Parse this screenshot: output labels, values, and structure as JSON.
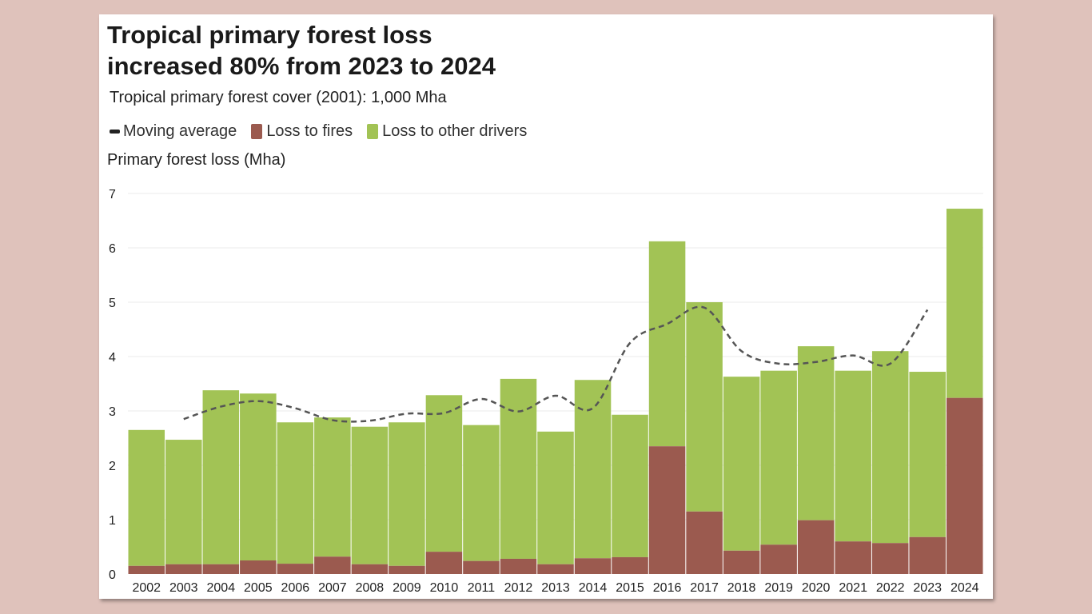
{
  "chart_data": {
    "type": "bar",
    "stacked": true,
    "title": "Tropical primary forest loss increased 80% from 2023 to 2024",
    "title_lines": [
      "Tropical primary forest loss",
      "increased 80% from 2023 to 2024"
    ],
    "subtitle": "Tropical primary forest cover (2001): 1,000 Mha",
    "ylabel": "Primary forest loss (Mha)",
    "xlabel": "",
    "ylim": [
      0,
      7
    ],
    "yticks": [
      "0",
      "1",
      "2",
      "3",
      "4",
      "5",
      "6",
      "7"
    ],
    "grid": true,
    "legend_placement": "top-left",
    "legend": [
      {
        "name": "Moving average",
        "marker": "dash",
        "color": "#222222"
      },
      {
        "name": "Loss to fires",
        "color": "#9b5a4f"
      },
      {
        "name": "Loss to other drivers",
        "color": "#a2c355"
      }
    ],
    "categories": [
      "2002",
      "2003",
      "2004",
      "2005",
      "2006",
      "2007",
      "2008",
      "2009",
      "2010",
      "2011",
      "2012",
      "2013",
      "2014",
      "2015",
      "2016",
      "2017",
      "2018",
      "2019",
      "2020",
      "2021",
      "2022",
      "2023",
      "2024"
    ],
    "series": [
      {
        "name": "Loss to fires",
        "color": "#9b5a4f",
        "values": [
          0.15,
          0.18,
          0.18,
          0.25,
          0.19,
          0.32,
          0.18,
          0.15,
          0.41,
          0.24,
          0.28,
          0.18,
          0.29,
          0.31,
          2.35,
          1.15,
          0.43,
          0.54,
          0.99,
          0.6,
          0.57,
          0.68,
          3.24
        ]
      },
      {
        "name": "Loss to other drivers",
        "color": "#a2c355",
        "values": [
          2.5,
          2.29,
          3.2,
          3.07,
          2.6,
          2.56,
          2.53,
          2.64,
          2.88,
          2.5,
          3.31,
          2.44,
          3.28,
          2.62,
          3.77,
          3.85,
          3.2,
          3.2,
          3.2,
          3.14,
          3.53,
          3.04,
          3.48
        ]
      },
      {
        "name": "Moving average",
        "type": "line",
        "style": "dashed",
        "color": "#555555",
        "x": [
          "2003",
          "2004",
          "2005",
          "2006",
          "2007",
          "2008",
          "2009",
          "2010",
          "2011",
          "2012",
          "2013",
          "2014",
          "2015",
          "2016",
          "2017",
          "2018",
          "2019",
          "2020",
          "2021",
          "2022",
          "2023"
        ],
        "values": [
          2.85,
          3.08,
          3.18,
          3.05,
          2.83,
          2.82,
          2.95,
          2.96,
          3.22,
          2.99,
          3.28,
          3.05,
          4.25,
          4.6,
          4.9,
          4.1,
          3.87,
          3.9,
          4.02,
          3.87,
          4.86
        ]
      }
    ]
  }
}
